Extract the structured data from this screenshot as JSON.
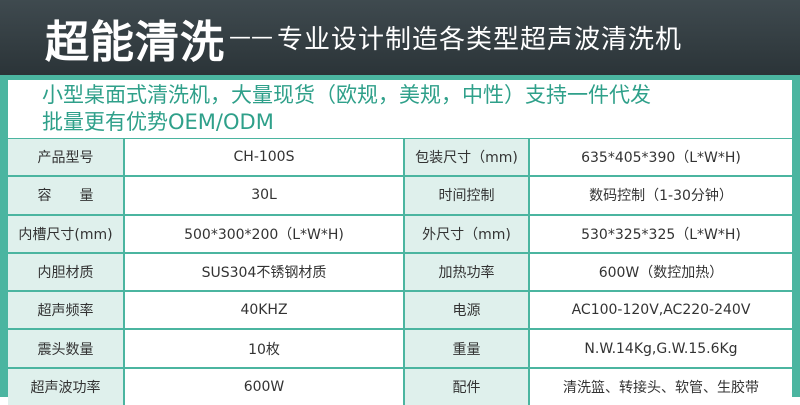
{
  "header": {
    "brand": "超能清洗",
    "dash": "——",
    "tagline": "专业设计制造各类型超声波清洗机"
  },
  "intro": {
    "line1": "小型桌面式清洗机，大量现货（欧规，美规，中性）支持一件代发",
    "line2": "批量更有优势OEM/ODM"
  },
  "specs": [
    {
      "l1": "产品型号",
      "v1": "CH-100S",
      "l2": "包装尺寸（mm)",
      "v2": "635*405*390（L*W*H)"
    },
    {
      "l1": "容　　量",
      "v1": "30L",
      "l2": "时间控制",
      "v2": "数码控制（1-30分钟）"
    },
    {
      "l1": "内槽尺寸(mm)",
      "v1": "500*300*200（L*W*H)",
      "l2": "外尺寸（mm)",
      "v2": "530*325*325（L*W*H)"
    },
    {
      "l1": "内胆材质",
      "v1": "SUS304不锈钢材质",
      "l2": "加热功率",
      "v2": "600W（数控加热）"
    },
    {
      "l1": "超声频率",
      "v1": "40KHZ",
      "l2": "电源",
      "v2": "AC100-120V,AC220-240V"
    },
    {
      "l1": "震头数量",
      "v1": "10枚",
      "l2": "重量",
      "v2": "N.W.14Kg,G.W.15.6Kg"
    },
    {
      "l1": "超声波功率",
      "v1": "600W",
      "l2": "配件",
      "v2": "清洗篮、转接头、软管、生胶带"
    }
  ]
}
